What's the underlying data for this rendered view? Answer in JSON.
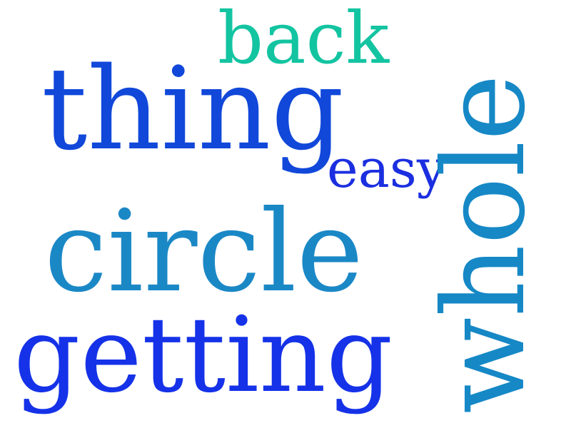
{
  "word_cloud": {
    "words": [
      {
        "text": "back",
        "color": "#13c4a1",
        "orientation": "horizontal"
      },
      {
        "text": "thing",
        "color": "#1148da",
        "orientation": "horizontal"
      },
      {
        "text": "easy",
        "color": "#1b2fe0",
        "orientation": "horizontal"
      },
      {
        "text": "circle",
        "color": "#1b88c6",
        "orientation": "horizontal"
      },
      {
        "text": "getting",
        "color": "#1532e8",
        "orientation": "horizontal"
      },
      {
        "text": "whole",
        "color": "#1688c6",
        "orientation": "vertical"
      }
    ]
  }
}
